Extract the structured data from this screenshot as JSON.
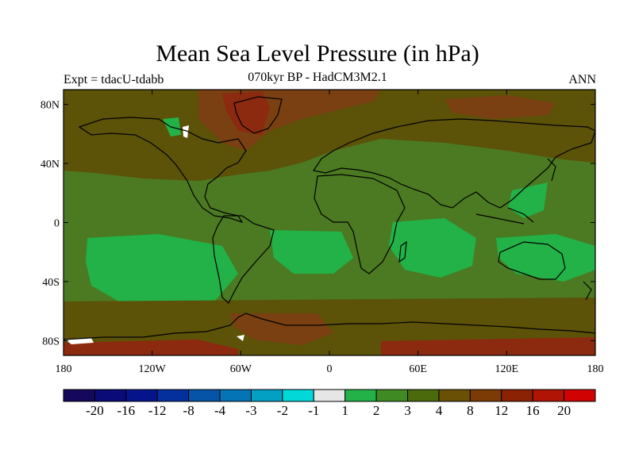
{
  "header": {
    "title": "Mean Sea Level Pressure (in hPa)",
    "experiment": "Expt = tdacU-tdabb",
    "subtitle": "070kyr BP - HadCM3M2.1",
    "season": "ANN"
  },
  "map": {
    "lat_ticks": [
      "80N",
      "40N",
      "0",
      "40S",
      "80S"
    ],
    "lon_ticks": [
      "180",
      "120W",
      "60W",
      "0",
      "60E",
      "120E",
      "180"
    ],
    "palette": {
      "base": "#4b7a22",
      "light_green": "#22b248",
      "dark_olive": "#5c5208",
      "brown": "#7a4012",
      "red_brown": "#8c2a10",
      "white": "#ffffff"
    }
  },
  "colorbar": {
    "colors": [
      "#15085a",
      "#0a0a78",
      "#06148c",
      "#04309e",
      "#0554a8",
      "#0474b6",
      "#03a0c4",
      "#02d8d8",
      "#e6e6e6",
      "#22b248",
      "#3f8a22",
      "#4a6a0c",
      "#6a5004",
      "#7c3a04",
      "#8c2204",
      "#b01404",
      "#d00202"
    ],
    "labels": [
      "-20",
      "-16",
      "-12",
      "-8",
      "-4",
      "-3",
      "-2",
      "-1",
      "1",
      "2",
      "3",
      "4",
      "8",
      "12",
      "16",
      "20"
    ]
  }
}
